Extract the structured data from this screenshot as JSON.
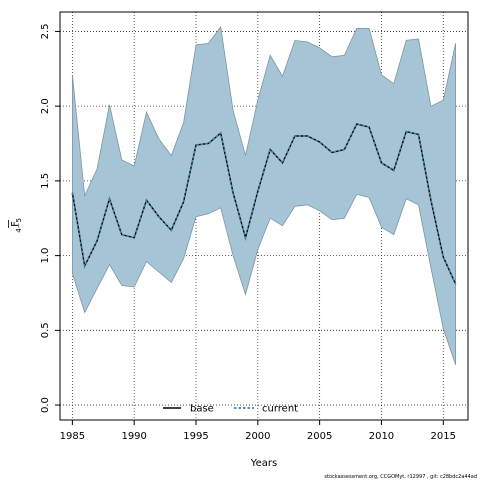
{
  "chart_data": {
    "type": "area",
    "xlabel": "Years",
    "ylabel_main": "F",
    "ylabel_sub": "4−5",
    "xlim": [
      1984,
      2017
    ],
    "ylim": [
      -0.1,
      2.63
    ],
    "x_ticks": [
      1985,
      1990,
      1995,
      2000,
      2005,
      2010,
      2015
    ],
    "y_ticks": [
      0.0,
      0.5,
      1.0,
      1.5,
      2.0,
      2.5
    ],
    "y_tick_labels": [
      "0.0",
      "0.5",
      "1.0",
      "1.5",
      "2.0",
      "2.5"
    ],
    "grid": true,
    "legend_position": "bottom-center",
    "legend": [
      {
        "label": "base",
        "style": "solid",
        "color": "#000000"
      },
      {
        "label": "current",
        "style": "dotted",
        "color": "#000000"
      }
    ],
    "x": [
      1985,
      1986,
      1987,
      1988,
      1989,
      1990,
      1991,
      1992,
      1993,
      1994,
      1995,
      1996,
      1997,
      1998,
      1999,
      2000,
      2001,
      2002,
      2003,
      2004,
      2005,
      2006,
      2007,
      2008,
      2009,
      2010,
      2011,
      2012,
      2013,
      2014,
      2015,
      2016
    ],
    "series": [
      {
        "name": "current",
        "values": [
          1.42,
          0.93,
          1.1,
          1.38,
          1.14,
          1.12,
          1.37,
          1.26,
          1.17,
          1.36,
          1.74,
          1.75,
          1.82,
          1.42,
          1.12,
          1.43,
          1.71,
          1.62,
          1.8,
          1.8,
          1.76,
          1.69,
          1.71,
          1.88,
          1.86,
          1.62,
          1.57,
          1.83,
          1.81,
          1.37,
          0.99,
          0.81
        ],
        "lower": [
          0.88,
          0.62,
          0.78,
          0.94,
          0.8,
          0.79,
          0.96,
          0.89,
          0.82,
          0.98,
          1.26,
          1.28,
          1.32,
          1.0,
          0.74,
          1.04,
          1.25,
          1.2,
          1.33,
          1.34,
          1.3,
          1.24,
          1.25,
          1.41,
          1.39,
          1.19,
          1.14,
          1.38,
          1.34,
          0.92,
          0.51,
          0.27
        ],
        "upper": [
          2.21,
          1.4,
          1.58,
          2.01,
          1.64,
          1.6,
          1.96,
          1.78,
          1.67,
          1.89,
          2.41,
          2.42,
          2.53,
          1.97,
          1.67,
          2.04,
          2.34,
          2.2,
          2.44,
          2.43,
          2.39,
          2.33,
          2.34,
          2.52,
          2.52,
          2.21,
          2.15,
          2.44,
          2.45,
          2.0,
          2.04,
          2.42
        ]
      }
    ],
    "colors": {
      "band_fill": "#a5c5d7",
      "band_stroke": "#7f94a2",
      "line": "#000000",
      "grid": "#333333"
    }
  },
  "footer_text": "stockassessment.org, CCGOMyt, r12997 , git: c28bdc2a44ad"
}
